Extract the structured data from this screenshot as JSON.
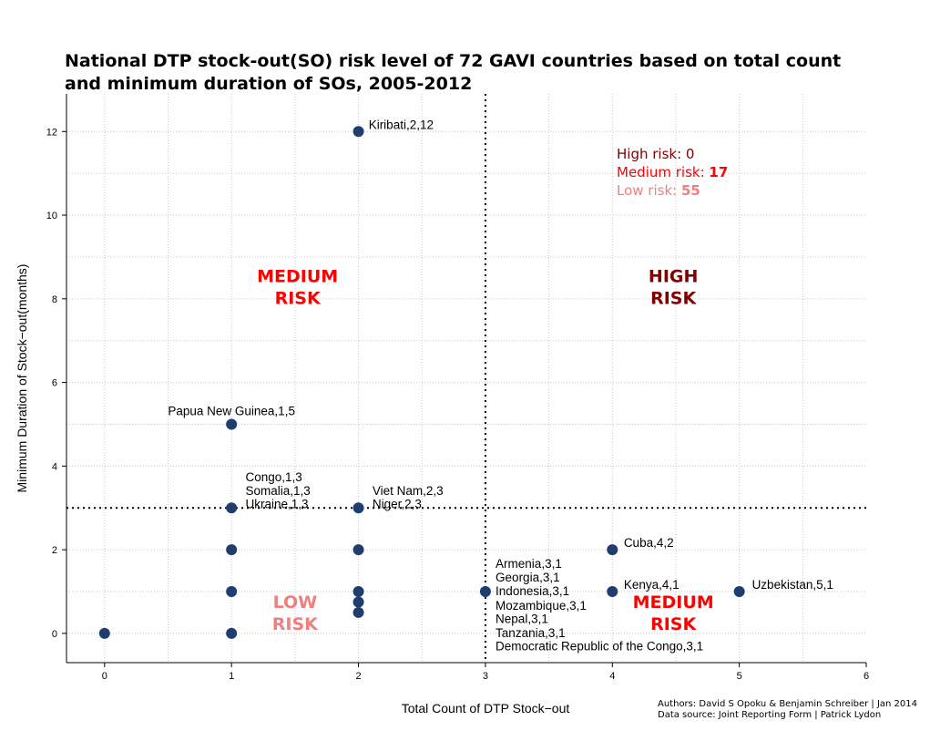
{
  "chart_data": {
    "type": "scatter",
    "title_lines": [
      "National DTP stock-out(SO) risk level of 72 GAVI countries based on total count",
      "and minimum duration of SOs, 2005-2012"
    ],
    "xlabel": "Total Count of DTP Stock−out",
    "ylabel": "Minimum Duration of Stock−out(months)",
    "xlim": [
      -0.3,
      6
    ],
    "ylim": [
      -0.7,
      12.9
    ],
    "xticks": [
      {
        "value": 0,
        "label": "0"
      },
      {
        "value": 1,
        "label": "1"
      },
      {
        "value": 2,
        "label": "2"
      },
      {
        "value": 3,
        "label": "3"
      },
      {
        "value": 4,
        "label": "4"
      },
      {
        "value": 5,
        "label": "5"
      },
      {
        "value": 6,
        "label": "6"
      }
    ],
    "yticks": [
      {
        "value": 0,
        "label": "0"
      },
      {
        "value": 2,
        "label": "2"
      },
      {
        "value": 4,
        "label": "4"
      },
      {
        "value": 6,
        "label": "6"
      },
      {
        "value": 8,
        "label": "8"
      },
      {
        "value": 10,
        "label": "10"
      },
      {
        "value": 12,
        "label": "12"
      }
    ],
    "grid": true,
    "thresholds": {
      "x": 3,
      "y": 3
    },
    "point_color": "#1f3d6e",
    "points": [
      {
        "x": 0,
        "y": 0
      },
      {
        "x": 1,
        "y": 0
      },
      {
        "x": 1,
        "y": 1
      },
      {
        "x": 1,
        "y": 2
      },
      {
        "x": 1,
        "y": 3
      },
      {
        "x": 1,
        "y": 5
      },
      {
        "x": 2,
        "y": 0.5
      },
      {
        "x": 2,
        "y": 0.75
      },
      {
        "x": 2,
        "y": 1
      },
      {
        "x": 2,
        "y": 2
      },
      {
        "x": 2,
        "y": 3
      },
      {
        "x": 2,
        "y": 12
      },
      {
        "x": 3,
        "y": 1
      },
      {
        "x": 4,
        "y": 1
      },
      {
        "x": 4,
        "y": 2
      },
      {
        "x": 5,
        "y": 1
      }
    ],
    "point_labels": [
      {
        "text": "Kiribati,2,12",
        "x": 2.08,
        "y": 12.15,
        "anchor": "start"
      },
      {
        "text": "Papua New Guinea,1,5",
        "x": 1.0,
        "y": 5.3,
        "anchor": "middle"
      },
      {
        "text": "Congo,1,3",
        "x": 1.11,
        "y": 3.72,
        "anchor": "start"
      },
      {
        "text": "Somalia,1,3",
        "x": 1.11,
        "y": 3.4,
        "anchor": "start"
      },
      {
        "text": "Ukraine,1,3",
        "x": 1.11,
        "y": 3.08,
        "anchor": "start"
      },
      {
        "text": "Viet Nam,2,3",
        "x": 2.11,
        "y": 3.4,
        "anchor": "start"
      },
      {
        "text": "Niger,2,3",
        "x": 2.11,
        "y": 3.08,
        "anchor": "start"
      },
      {
        "text": "Armenia,3,1",
        "x": 3.08,
        "y": 1.65,
        "anchor": "start"
      },
      {
        "text": "Georgia,3,1",
        "x": 3.08,
        "y": 1.33,
        "anchor": "start"
      },
      {
        "text": "Indonesia,3,1",
        "x": 3.08,
        "y": 1.0,
        "anchor": "start"
      },
      {
        "text": "Mozambique,3,1",
        "x": 3.08,
        "y": 0.65,
        "anchor": "start"
      },
      {
        "text": "Nepal,3,1",
        "x": 3.08,
        "y": 0.33,
        "anchor": "start"
      },
      {
        "text": "Tanzania,3,1",
        "x": 3.08,
        "y": 0.0,
        "anchor": "start"
      },
      {
        "text": "Democratic Republic of the Congo,3,1",
        "x": 3.08,
        "y": -0.32,
        "anchor": "start"
      },
      {
        "text": "Cuba,4,2",
        "x": 4.09,
        "y": 2.15,
        "anchor": "start"
      },
      {
        "text": "Kenya,4,1",
        "x": 4.09,
        "y": 1.15,
        "anchor": "start"
      },
      {
        "text": "Uzbekistan,5,1",
        "x": 5.1,
        "y": 1.15,
        "anchor": "start"
      }
    ],
    "region_labels": [
      {
        "lines": [
          "MEDIUM",
          "RISK"
        ],
        "x": 1.52,
        "y": 8.25,
        "color": "#ff0000"
      },
      {
        "lines": [
          "HIGH",
          "RISK"
        ],
        "x": 4.48,
        "y": 8.25,
        "color": "#800000"
      },
      {
        "lines": [
          "LOW",
          "RISK"
        ],
        "x": 1.5,
        "y": 0.45,
        "color": "#f08080"
      },
      {
        "lines": [
          "MEDIUM",
          "RISK"
        ],
        "x": 4.48,
        "y": 0.45,
        "color": "#ff0000"
      }
    ],
    "risk_summary": [
      {
        "label": "High risk: ",
        "value": "0",
        "color": "#800000",
        "bold_value": false
      },
      {
        "label": "Medium risk: ",
        "value": "17",
        "color": "#ff0000",
        "bold_value": true
      },
      {
        "label": "Low risk: ",
        "value": "55",
        "color": "#f08080",
        "bold_value": true
      }
    ]
  },
  "credits": {
    "authors": "Authors: David S Opoku & Benjamin Schreiber | Jan 2014",
    "source": "Data source: Joint Reporting Form | Patrick Lydon"
  }
}
